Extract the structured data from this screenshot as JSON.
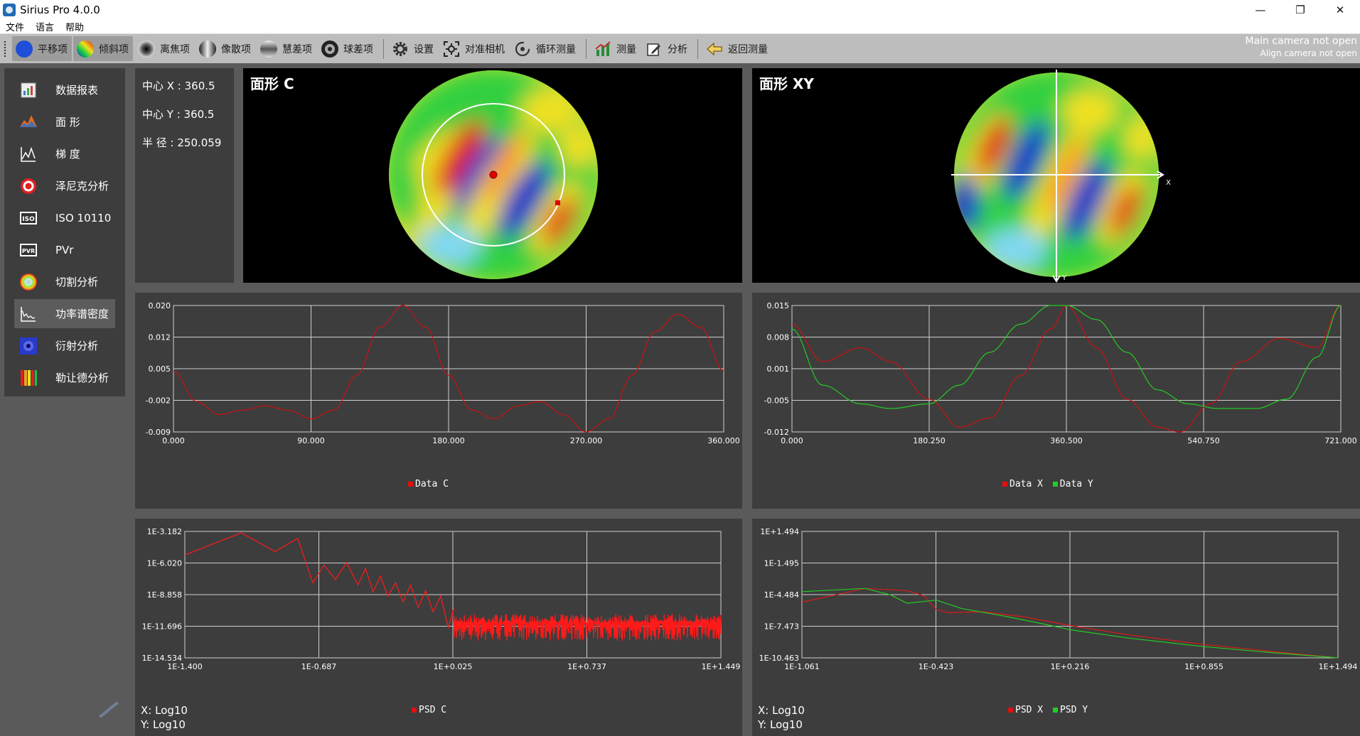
{
  "window": {
    "title": "Sirius Pro 4.0.0",
    "minimize": "—",
    "restore": "❐",
    "close": "✕"
  },
  "menu": [
    "文件",
    "语言",
    "帮助"
  ],
  "toolbar": {
    "items": [
      {
        "label": "平移项",
        "icon": "blue-circle-icon",
        "active": true
      },
      {
        "label": "倾斜项",
        "icon": "rainbow-circle-icon",
        "active": true
      },
      {
        "label": "离焦项",
        "icon": "defocus-icon",
        "active": false
      },
      {
        "label": "像散项",
        "icon": "astigmatism-icon",
        "active": false
      },
      {
        "label": "慧差项",
        "icon": "coma-icon",
        "active": false
      },
      {
        "label": "球差项",
        "icon": "spherical-icon",
        "active": false
      },
      {
        "label": "设置",
        "icon": "gear-icon",
        "active": false
      },
      {
        "label": "对准相机",
        "icon": "crosshair-icon",
        "active": false
      },
      {
        "label": "循环测量",
        "icon": "cycle-icon",
        "active": false
      },
      {
        "label": "测量",
        "icon": "measure-icon",
        "active": false
      },
      {
        "label": "分析",
        "icon": "edit-icon",
        "active": false
      },
      {
        "label": "返回测量",
        "icon": "back-arrow-icon",
        "active": false
      }
    ],
    "status_main": "Main camera not open",
    "status_align": "Align camera not open"
  },
  "sidebar": {
    "items": [
      {
        "label": "数据报表",
        "icon": "report-icon"
      },
      {
        "label": "面 形",
        "icon": "surface-icon"
      },
      {
        "label": "梯 度",
        "icon": "gradient-icon"
      },
      {
        "label": "泽尼克分析",
        "icon": "target-icon"
      },
      {
        "label": "ISO 10110",
        "icon": "iso-icon"
      },
      {
        "label": "PVr",
        "icon": "pvr-icon"
      },
      {
        "label": "切割分析",
        "icon": "cut-icon"
      },
      {
        "label": "功率谱密度",
        "icon": "psd-icon"
      },
      {
        "label": "衍射分析",
        "icon": "diffraction-icon"
      },
      {
        "label": "勒让德分析",
        "icon": "legendre-icon"
      }
    ],
    "active_index": 7
  },
  "info": {
    "center_x": "中心 X : 360.5",
    "center_y": "中心 Y : 360.5",
    "radius": "半 径 : 250.059"
  },
  "maps": {
    "left_title": "面形 C",
    "right_title": "面形 XY",
    "axis_x": "X",
    "axis_y": "Y"
  },
  "chart_data": [
    {
      "type": "line",
      "title": "",
      "x_ticks": [
        "0.000",
        "90.000",
        "180.000",
        "270.000",
        "360.000"
      ],
      "y_ticks": [
        "0.020",
        "0.012",
        "0.005",
        "-0.002",
        "-0.009"
      ],
      "xlim": [
        0,
        360
      ],
      "ylim": [
        -0.009,
        0.02
      ],
      "grid": true,
      "legend_position": "bottom-center",
      "series": [
        {
          "name": "Data C",
          "color": "#cc1010",
          "x": [
            0,
            15,
            30,
            45,
            60,
            75,
            90,
            105,
            120,
            135,
            150,
            165,
            180,
            195,
            210,
            225,
            240,
            255,
            270,
            285,
            300,
            315,
            330,
            345,
            360
          ],
          "values": [
            0.005,
            -0.002,
            -0.005,
            -0.004,
            -0.003,
            -0.004,
            -0.006,
            -0.004,
            0.004,
            0.015,
            0.02,
            0.015,
            0.004,
            -0.004,
            -0.006,
            -0.003,
            -0.002,
            -0.005,
            -0.009,
            -0.006,
            0.004,
            0.014,
            0.018,
            0.015,
            0.005
          ]
        }
      ]
    },
    {
      "type": "line",
      "title": "",
      "x_ticks": [
        "0.000",
        "180.250",
        "360.500",
        "540.750",
        "721.000"
      ],
      "y_ticks": [
        "0.015",
        "0.008",
        "0.001",
        "-0.005",
        "-0.012"
      ],
      "xlim": [
        0,
        721
      ],
      "ylim": [
        -0.012,
        0.015
      ],
      "grid": true,
      "legend_position": "bottom-center",
      "series": [
        {
          "name": "Data X",
          "color": "#cc1010",
          "x": [
            0,
            40,
            90,
            130,
            180,
            220,
            260,
            300,
            340,
            361,
            400,
            440,
            480,
            510,
            550,
            590,
            640,
            690,
            721
          ],
          "values": [
            0.011,
            0.003,
            0.006,
            0.003,
            -0.005,
            -0.011,
            -0.009,
            0.0,
            0.01,
            0.015,
            0.006,
            -0.005,
            -0.011,
            -0.012,
            -0.006,
            0.003,
            0.008,
            0.006,
            0.015
          ]
        },
        {
          "name": "Data Y",
          "color": "#22cc22",
          "x": [
            0,
            40,
            90,
            130,
            180,
            220,
            260,
            300,
            340,
            361,
            400,
            440,
            480,
            520,
            560,
            610,
            650,
            690,
            721
          ],
          "values": [
            0.01,
            -0.002,
            -0.006,
            -0.007,
            -0.006,
            -0.002,
            0.005,
            0.011,
            0.015,
            0.015,
            0.012,
            0.005,
            -0.003,
            -0.006,
            -0.007,
            -0.007,
            -0.005,
            0.004,
            0.015
          ]
        }
      ]
    },
    {
      "type": "line",
      "title": "",
      "x_ticks": [
        "1E-1.400",
        "1E-0.687",
        "1E+0.025",
        "1E+0.737",
        "1E+1.449"
      ],
      "y_ticks": [
        "1E-3.182",
        "1E-6.020",
        "1E-8.858",
        "1E-11.696",
        "1E-14.534"
      ],
      "xlim": [
        -1.4,
        1.449
      ],
      "ylim": [
        -14.534,
        -3.182
      ],
      "grid": true,
      "legend_position": "bottom-center",
      "x_scale": "log10",
      "y_scale": "log10",
      "x_label": "X: Log10",
      "y_label": "Y: Log10",
      "series": [
        {
          "name": "PSD C",
          "color": "#ff1a1a",
          "x": [
            -1.4,
            -1.1,
            -0.92,
            -0.8,
            -0.72,
            -0.66,
            -0.6,
            -0.54,
            -0.48,
            -0.44,
            -0.4,
            -0.36,
            -0.32,
            -0.28,
            -0.24,
            -0.2,
            -0.16,
            -0.12,
            -0.08,
            -0.04,
            0.0,
            0.03
          ],
          "values": [
            -5.3,
            -3.3,
            -5.0,
            -3.8,
            -7.8,
            -6.2,
            -7.5,
            -6.0,
            -8.0,
            -6.5,
            -8.6,
            -7.2,
            -9.0,
            -7.8,
            -9.5,
            -8.0,
            -10.0,
            -8.5,
            -10.4,
            -9.0,
            -11.8,
            -10.0
          ],
          "noise_band": {
            "x_from": 0.025,
            "x_to": 1.449,
            "low": -13.0,
            "high": -10.6
          }
        }
      ]
    },
    {
      "type": "line",
      "title": "",
      "x_ticks": [
        "1E-1.061",
        "1E-0.423",
        "1E+0.216",
        "1E+0.855",
        "1E+1.494"
      ],
      "y_ticks": [
        "1E+1.494",
        "1E-1.495",
        "1E-4.484",
        "1E-7.473",
        "1E-10.463"
      ],
      "xlim": [
        -1.061,
        1.494
      ],
      "ylim": [
        -10.463,
        1.494
      ],
      "grid": true,
      "legend_position": "bottom-center",
      "x_scale": "log10",
      "y_scale": "log10",
      "x_label": "X: Log10",
      "y_label": "Y: Log10",
      "series": [
        {
          "name": "PSD X",
          "color": "#dd1a1a",
          "x": [
            -1.061,
            -0.76,
            -0.56,
            -0.48,
            -0.42,
            -0.36,
            -0.2,
            0.0,
            0.216,
            0.5,
            0.855,
            1.2,
            1.494
          ],
          "values": [
            -5.2,
            -3.9,
            -4.1,
            -4.6,
            -5.9,
            -6.2,
            -6.1,
            -6.6,
            -7.4,
            -8.3,
            -9.2,
            -9.9,
            -10.46
          ]
        },
        {
          "name": "PSD Y",
          "color": "#22cc22",
          "x": [
            -1.061,
            -0.76,
            -0.64,
            -0.56,
            -0.42,
            -0.3,
            -0.1,
            0.1,
            0.216,
            0.5,
            0.855,
            1.2,
            1.494
          ],
          "values": [
            -4.2,
            -3.9,
            -4.5,
            -5.3,
            -5.0,
            -5.8,
            -6.5,
            -7.3,
            -7.8,
            -8.6,
            -9.4,
            -10.0,
            -10.46
          ]
        }
      ]
    }
  ]
}
